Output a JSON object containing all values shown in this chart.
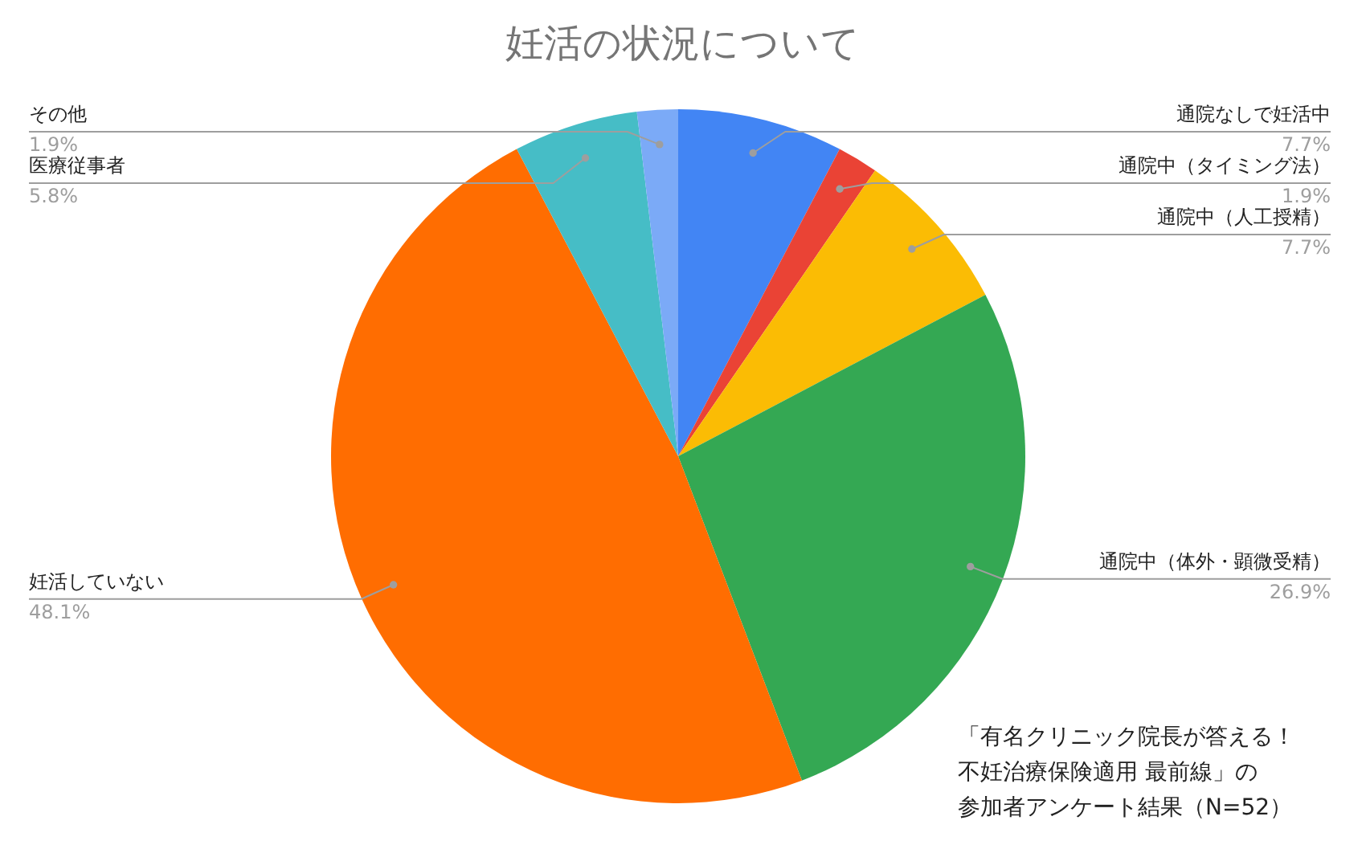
{
  "chart_data": {
    "type": "pie",
    "title": "妊活の状況について",
    "categories": [
      "通院なしで妊活中",
      "通院中（タイミング法）",
      "通院中（人工授精）",
      "通院中（体外・顕微受精）",
      "妊活していない",
      "医療従事者",
      "その他"
    ],
    "values": [
      7.7,
      1.9,
      7.7,
      26.9,
      48.1,
      5.8,
      1.9
    ],
    "value_labels": [
      "7.7%",
      "1.9%",
      "7.7%",
      "26.9%",
      "48.1%",
      "5.8%",
      "1.9%"
    ],
    "colors": [
      "#4285f4",
      "#ea4335",
      "#fbbc04",
      "#34a853",
      "#ff6d01",
      "#46bdc6",
      "#7baaf7"
    ],
    "legend": false,
    "annotations": [
      "「有名クリニック院長が答える！",
      "不妊治療保険適用 最前線」の",
      "参加者アンケート結果（N=52）"
    ]
  }
}
